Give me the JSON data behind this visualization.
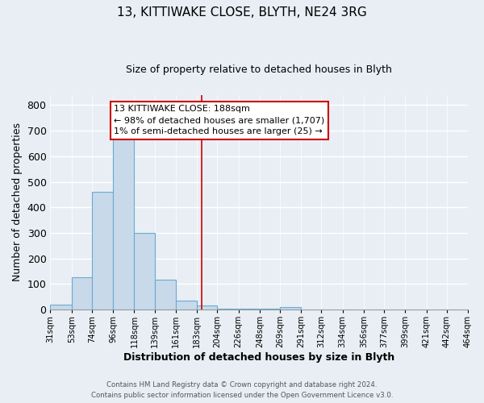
{
  "title1": "13, KITTIWAKE CLOSE, BLYTH, NE24 3RG",
  "title2": "Size of property relative to detached houses in Blyth",
  "xlabel": "Distribution of detached houses by size in Blyth",
  "ylabel": "Number of detached properties",
  "bin_edges": [
    31,
    53,
    74,
    96,
    118,
    139,
    161,
    183,
    204,
    226,
    248,
    269,
    291,
    312,
    334,
    356,
    377,
    399,
    421,
    442,
    464
  ],
  "bar_heights": [
    18,
    128,
    460,
    668,
    300,
    117,
    35,
    15,
    5,
    3,
    2,
    10,
    0,
    0,
    0,
    0,
    0,
    0,
    0,
    0
  ],
  "bar_color": "#c8d9ea",
  "bar_edge_color": "#6aaad4",
  "property_line_x": 188,
  "ylim": [
    0,
    840
  ],
  "yticks": [
    0,
    100,
    200,
    300,
    400,
    500,
    600,
    700,
    800
  ],
  "tick_labels": [
    "31sqm",
    "53sqm",
    "74sqm",
    "96sqm",
    "118sqm",
    "139sqm",
    "161sqm",
    "183sqm",
    "204sqm",
    "226sqm",
    "248sqm",
    "269sqm",
    "291sqm",
    "312sqm",
    "334sqm",
    "356sqm",
    "377sqm",
    "399sqm",
    "421sqm",
    "442sqm",
    "464sqm"
  ],
  "annotation_title": "13 KITTIWAKE CLOSE: 188sqm",
  "annotation_line1": "← 98% of detached houses are smaller (1,707)",
  "annotation_line2": "1% of semi-detached houses are larger (25) →",
  "footer1": "Contains HM Land Registry data © Crown copyright and database right 2024.",
  "footer2": "Contains public sector information licensed under the Open Government Licence v3.0.",
  "bg_color": "#e8eef4",
  "plot_bg_color": "#e8eef4",
  "grid_color": "#ffffff",
  "red_line_color": "#cc0000",
  "annotation_box_edge": "#cc0000",
  "title1_fontsize": 11,
  "title2_fontsize": 9,
  "xlabel_fontsize": 9,
  "ylabel_fontsize": 9
}
